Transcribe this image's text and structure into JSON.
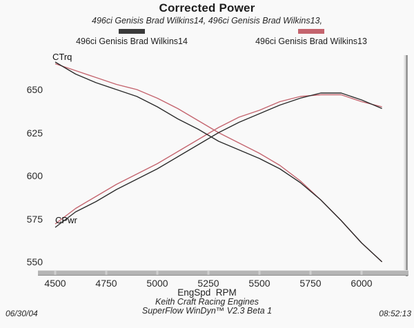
{
  "page": {
    "title": "Corrected Power",
    "subtitle": "496ci Genisis Brad Wilkins14, 496ci Genisis Brad Wilkins13,",
    "footer": {
      "company": "Keith Craft Racing Engines",
      "software": "SuperFlow WinDyn™ V2.3 Beta 1",
      "date": "06/30/04",
      "time": "08:52:13"
    }
  },
  "legend": {
    "items": [
      {
        "label": "496ci Genisis Brad Wilkins14",
        "color": "#3a3a3a"
      },
      {
        "label": "496ci Genisis Brad Wilkins13",
        "color": "#c4646e"
      }
    ]
  },
  "chart_data": {
    "type": "line",
    "title": "Corrected Power",
    "xlabel": "EngSpd  RPM",
    "ylabel": "",
    "grid": false,
    "legend_position": "top",
    "xlim": [
      4480,
      6220
    ],
    "ylim": [
      545,
      670
    ],
    "x_ticks": [
      4500,
      4750,
      5000,
      5250,
      5500,
      5750,
      6000
    ],
    "y_ticks": [
      650,
      625,
      600,
      575,
      550
    ],
    "curve_labels": [
      {
        "text": "CTrq"
      },
      {
        "text": "CPwr"
      }
    ],
    "x": [
      4500,
      4600,
      4700,
      4800,
      4900,
      5000,
      5100,
      5200,
      5300,
      5400,
      5500,
      5600,
      5700,
      5800,
      5900,
      6000,
      6100
    ],
    "series": [
      {
        "name": "CTrq-Wilkins13",
        "run": "496ci Genisis Brad Wilkins13",
        "color": "#c4646e",
        "values": [
          665,
          661,
          657,
          653,
          650,
          645,
          639,
          632,
          625,
          619,
          613,
          606,
          597,
          586,
          574,
          561,
          550
        ]
      },
      {
        "name": "CPwr-Wilkins13",
        "run": "496ci Genisis Brad Wilkins13",
        "color": "#c4646e",
        "values": [
          572,
          581,
          588,
          595,
          601,
          607,
          614,
          621,
          628,
          634,
          638,
          643,
          646,
          647,
          647,
          643,
          640
        ]
      },
      {
        "name": "CTrq-Wilkins14",
        "run": "496ci Genisis Brad Wilkins14",
        "color": "#2b2b2b",
        "values": [
          666,
          659,
          654,
          650,
          646,
          640,
          633,
          627,
          620,
          615,
          610,
          604,
          596,
          586,
          574,
          561,
          550
        ]
      },
      {
        "name": "CPwr-Wilkins14",
        "run": "496ci Genisis Brad Wilkins14",
        "color": "#2b2b2b",
        "values": [
          570,
          579,
          585,
          592,
          598,
          604,
          611,
          618,
          625,
          631,
          636,
          641,
          645,
          648,
          648,
          644,
          639
        ]
      }
    ]
  }
}
